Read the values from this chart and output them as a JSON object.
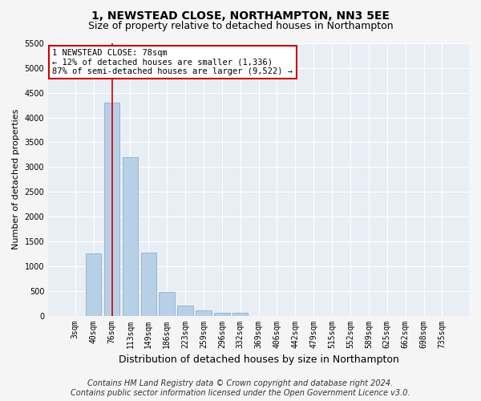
{
  "title": "1, NEWSTEAD CLOSE, NORTHAMPTON, NN3 5EE",
  "subtitle": "Size of property relative to detached houses in Northampton",
  "xlabel": "Distribution of detached houses by size in Northampton",
  "ylabel": "Number of detached properties",
  "footer_line1": "Contains HM Land Registry data © Crown copyright and database right 2024.",
  "footer_line2": "Contains public sector information licensed under the Open Government Licence v3.0.",
  "categories": [
    "3sqm",
    "40sqm",
    "76sqm",
    "113sqm",
    "149sqm",
    "186sqm",
    "223sqm",
    "259sqm",
    "296sqm",
    "332sqm",
    "369sqm",
    "406sqm",
    "442sqm",
    "479sqm",
    "515sqm",
    "552sqm",
    "589sqm",
    "625sqm",
    "662sqm",
    "698sqm",
    "735sqm"
  ],
  "values": [
    0,
    1250,
    4300,
    3200,
    1280,
    480,
    200,
    100,
    65,
    55,
    0,
    0,
    0,
    0,
    0,
    0,
    0,
    0,
    0,
    0,
    0
  ],
  "bar_color": "#b8cfe8",
  "bar_edge_color": "#8ab0d0",
  "property_line_x": 2,
  "property_line_color": "#cc0000",
  "annotation_line1": "1 NEWSTEAD CLOSE: 78sqm",
  "annotation_line2": "← 12% of detached houses are smaller (1,336)",
  "annotation_line3": "87% of semi-detached houses are larger (9,522) →",
  "annotation_box_facecolor": "#ffffff",
  "annotation_box_edgecolor": "#cc0000",
  "ylim_max": 5500,
  "yticks": [
    0,
    500,
    1000,
    1500,
    2000,
    2500,
    3000,
    3500,
    4000,
    4500,
    5000,
    5500
  ],
  "plot_bg_color": "#e8eef4",
  "fig_bg_color": "#f5f5f5",
  "grid_color": "#ffffff",
  "title_fontsize": 10,
  "subtitle_fontsize": 9,
  "xlabel_fontsize": 9,
  "ylabel_fontsize": 8,
  "tick_fontsize": 7,
  "annotation_fontsize": 7.5,
  "footer_fontsize": 7
}
